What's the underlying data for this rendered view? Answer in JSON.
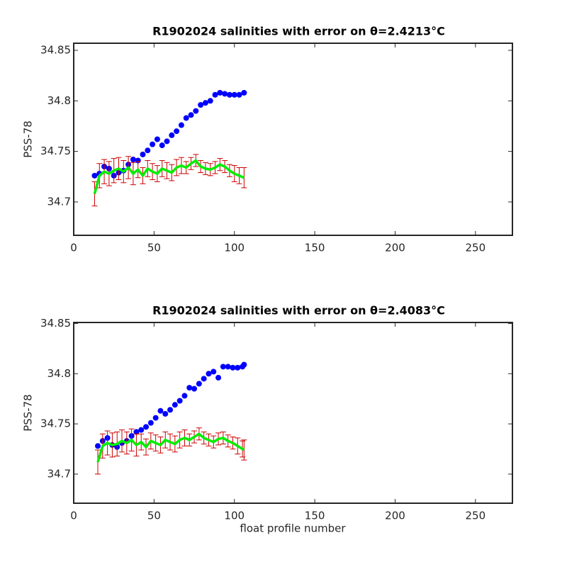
{
  "chart_data": [
    {
      "type": "scatter",
      "title": "R1902024 salinities with error on θ=2.4213°C",
      "y_label": "PSS-78",
      "x": [
        13,
        16,
        19,
        22,
        25,
        28,
        31,
        34,
        37,
        40,
        43,
        46,
        49,
        52,
        55,
        58,
        61,
        64,
        67,
        70,
        73,
        76,
        79,
        82,
        85,
        88,
        91,
        94,
        97,
        100,
        103,
        106
      ],
      "series": [
        {
          "style": "markers",
          "color": "#0000ff",
          "values": [
            34.726,
            34.728,
            34.735,
            34.733,
            34.726,
            34.729,
            34.731,
            34.737,
            34.742,
            34.741,
            34.747,
            34.751,
            34.757,
            34.762,
            34.756,
            34.76,
            34.766,
            34.77,
            34.776,
            34.783,
            34.786,
            34.79,
            34.796,
            34.798,
            34.8,
            34.806,
            34.808,
            34.807,
            34.806,
            34.806,
            34.806,
            34.808
          ]
        },
        {
          "style": "line",
          "color": "#00ee00",
          "error_color": "#cc0000",
          "values": [
            34.708,
            34.726,
            34.73,
            34.728,
            34.731,
            34.733,
            34.73,
            34.734,
            34.728,
            34.732,
            34.726,
            34.733,
            34.73,
            34.728,
            34.733,
            34.731,
            34.729,
            34.734,
            34.736,
            34.734,
            34.738,
            34.741,
            34.735,
            34.733,
            34.732,
            34.734,
            34.737,
            34.735,
            34.731,
            34.728,
            34.726,
            34.724
          ],
          "errors": [
            0.012,
            0.012,
            0.012,
            0.012,
            0.012,
            0.011,
            0.011,
            0.011,
            0.011,
            0.008,
            0.008,
            0.008,
            0.008,
            0.008,
            0.008,
            0.008,
            0.008,
            0.008,
            0.008,
            0.006,
            0.006,
            0.006,
            0.006,
            0.006,
            0.006,
            0.006,
            0.006,
            0.006,
            0.006,
            0.008,
            0.008,
            0.01
          ]
        }
      ],
      "xlim": [
        0,
        273
      ],
      "ylim": [
        34.667,
        34.857
      ],
      "xticks": [
        0,
        50,
        100,
        150,
        200,
        250
      ],
      "yticks": [
        34.7,
        34.75,
        34.8,
        34.85
      ]
    },
    {
      "type": "scatter",
      "title": "R1902024 salinities with error on θ=2.4083°C",
      "y_label": "PSS-78",
      "x_label": "float profile number",
      "x": [
        15,
        18,
        21,
        24,
        27,
        30,
        33,
        36,
        39,
        42,
        45,
        48,
        51,
        54,
        57,
        60,
        63,
        66,
        69,
        72,
        75,
        78,
        81,
        84,
        87,
        90,
        93,
        96,
        99,
        102,
        105,
        106
      ],
      "series": [
        {
          "style": "markers",
          "color": "#0000ff",
          "values": [
            34.728,
            34.733,
            34.736,
            34.729,
            34.727,
            34.731,
            34.733,
            34.738,
            34.742,
            34.744,
            34.747,
            34.751,
            34.756,
            34.763,
            34.76,
            34.764,
            34.769,
            34.773,
            34.778,
            34.786,
            34.785,
            34.79,
            34.795,
            34.8,
            34.802,
            34.796,
            34.807,
            34.807,
            34.806,
            34.806,
            34.807,
            34.809
          ]
        },
        {
          "style": "line",
          "color": "#00ee00",
          "error_color": "#cc0000",
          "values": [
            34.712,
            34.728,
            34.731,
            34.729,
            34.73,
            34.733,
            34.731,
            34.734,
            34.729,
            34.732,
            34.727,
            34.733,
            34.731,
            34.729,
            34.734,
            34.732,
            34.73,
            34.734,
            34.736,
            34.734,
            34.737,
            34.74,
            34.736,
            34.734,
            34.732,
            34.735,
            34.736,
            34.733,
            34.731,
            34.728,
            34.725,
            34.724
          ],
          "errors": [
            0.012,
            0.012,
            0.012,
            0.012,
            0.012,
            0.011,
            0.011,
            0.011,
            0.011,
            0.008,
            0.008,
            0.008,
            0.008,
            0.008,
            0.008,
            0.008,
            0.008,
            0.008,
            0.008,
            0.006,
            0.006,
            0.006,
            0.006,
            0.006,
            0.006,
            0.006,
            0.006,
            0.006,
            0.006,
            0.008,
            0.008,
            0.01
          ]
        }
      ],
      "xlim": [
        0,
        273
      ],
      "ylim": [
        34.671,
        34.851
      ],
      "xticks": [
        0,
        50,
        100,
        150,
        200,
        250
      ],
      "yticks": [
        34.7,
        34.75,
        34.8,
        34.85
      ]
    }
  ]
}
